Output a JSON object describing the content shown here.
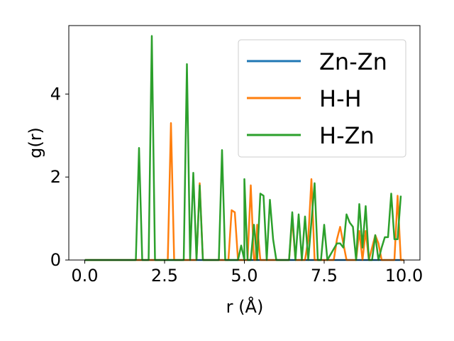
{
  "chart_data": {
    "type": "line",
    "xlabel": "r (Å)",
    "ylabel": "g(r)",
    "xlim": [
      -0.5,
      10.5
    ],
    "ylim": [
      0,
      5.65
    ],
    "xticks": [
      0.0,
      2.5,
      5.0,
      7.5,
      10.0
    ],
    "xtick_labels": [
      "0.0",
      "2.5",
      "5.0",
      "7.5",
      "10.0"
    ],
    "yticks": [
      0,
      2,
      4
    ],
    "ytick_labels": [
      "0",
      "2",
      "4"
    ],
    "grid": false,
    "legend_position": "top-right",
    "series": [
      {
        "name": "Zn-Zn",
        "color": "#1f77b4",
        "points": [
          [
            0.0,
            0.0
          ],
          [
            10.0,
            0.0
          ]
        ]
      },
      {
        "name": "H-H",
        "color": "#ff7f0e",
        "points": [
          [
            0.0,
            0.0
          ],
          [
            2.6,
            0.0
          ],
          [
            2.7,
            3.3
          ],
          [
            2.8,
            0.0
          ],
          [
            3.5,
            0.0
          ],
          [
            3.6,
            1.85
          ],
          [
            3.7,
            0.0
          ],
          [
            4.5,
            0.0
          ],
          [
            4.6,
            1.2
          ],
          [
            4.7,
            1.15
          ],
          [
            4.8,
            0.0
          ],
          [
            5.1,
            0.0
          ],
          [
            5.2,
            1.8
          ],
          [
            5.3,
            0.0
          ],
          [
            5.35,
            0.0
          ],
          [
            5.4,
            0.85
          ],
          [
            5.5,
            0.0
          ],
          [
            6.4,
            0.0
          ],
          [
            6.5,
            1.0
          ],
          [
            6.6,
            0.0
          ],
          [
            6.9,
            0.0
          ],
          [
            7.0,
            0.5
          ],
          [
            7.1,
            1.95
          ],
          [
            7.2,
            0.0
          ],
          [
            7.8,
            0.0
          ],
          [
            7.9,
            0.5
          ],
          [
            8.0,
            0.8
          ],
          [
            8.1,
            0.4
          ],
          [
            8.2,
            0.0
          ],
          [
            8.5,
            0.0
          ],
          [
            8.6,
            0.7
          ],
          [
            8.7,
            0.0
          ],
          [
            8.8,
            0.7
          ],
          [
            8.9,
            0.0
          ],
          [
            9.1,
            0.6
          ],
          [
            9.2,
            0.4
          ],
          [
            9.3,
            0.0
          ],
          [
            9.7,
            0.0
          ],
          [
            9.8,
            1.55
          ],
          [
            9.9,
            0.0
          ],
          [
            10.0,
            0.0
          ]
        ]
      },
      {
        "name": "H-Zn",
        "color": "#2ca02c",
        "points": [
          [
            0.0,
            0.0
          ],
          [
            1.6,
            0.0
          ],
          [
            1.7,
            2.7
          ],
          [
            1.8,
            0.0
          ],
          [
            2.0,
            0.0
          ],
          [
            2.1,
            5.4
          ],
          [
            2.2,
            0.0
          ],
          [
            3.1,
            0.0
          ],
          [
            3.2,
            4.72
          ],
          [
            3.3,
            0.0
          ],
          [
            3.4,
            2.1
          ],
          [
            3.5,
            0.0
          ],
          [
            3.6,
            1.8
          ],
          [
            3.7,
            0.0
          ],
          [
            4.2,
            0.0
          ],
          [
            4.3,
            2.65
          ],
          [
            4.4,
            0.0
          ],
          [
            4.8,
            0.0
          ],
          [
            4.9,
            0.35
          ],
          [
            5.0,
            0.0
          ],
          [
            5.0,
            1.95
          ],
          [
            5.1,
            0.0
          ],
          [
            5.2,
            0.0
          ],
          [
            5.3,
            0.85
          ],
          [
            5.4,
            0.0
          ],
          [
            5.5,
            1.6
          ],
          [
            5.6,
            1.55
          ],
          [
            5.7,
            0.0
          ],
          [
            5.8,
            1.45
          ],
          [
            5.9,
            0.5
          ],
          [
            6.0,
            0.0
          ],
          [
            6.4,
            0.0
          ],
          [
            6.5,
            1.15
          ],
          [
            6.6,
            0.0
          ],
          [
            6.7,
            1.1
          ],
          [
            6.8,
            0.0
          ],
          [
            6.9,
            1.05
          ],
          [
            7.0,
            0.0
          ],
          [
            7.2,
            1.85
          ],
          [
            7.3,
            0.0
          ],
          [
            7.4,
            0.0
          ],
          [
            7.5,
            0.85
          ],
          [
            7.6,
            0.0
          ],
          [
            7.9,
            0.4
          ],
          [
            8.0,
            0.4
          ],
          [
            8.1,
            0.3
          ],
          [
            8.2,
            1.1
          ],
          [
            8.3,
            0.9
          ],
          [
            8.4,
            0.8
          ],
          [
            8.5,
            0.0
          ],
          [
            8.6,
            1.35
          ],
          [
            8.7,
            0.3
          ],
          [
            8.8,
            1.3
          ],
          [
            8.9,
            0.0
          ],
          [
            9.0,
            0.0
          ],
          [
            9.1,
            0.6
          ],
          [
            9.2,
            0.0
          ],
          [
            9.3,
            0.3
          ],
          [
            9.4,
            0.55
          ],
          [
            9.5,
            0.55
          ],
          [
            9.6,
            1.6
          ],
          [
            9.7,
            0.5
          ],
          [
            9.8,
            0.5
          ],
          [
            9.9,
            1.55
          ]
        ]
      }
    ]
  }
}
